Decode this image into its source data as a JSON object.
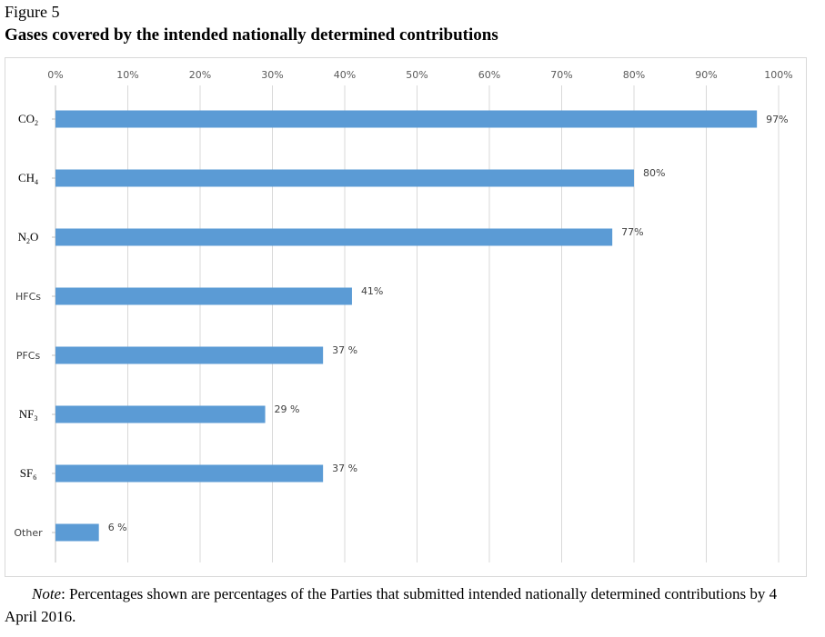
{
  "figure_label": "Figure 5",
  "figure_title": "Gases covered by the intended nationally determined contributions",
  "note": {
    "lead": "Note",
    "text": ": Percentages shown are percentages of the Parties that submitted intended nationally determined contributions by 4 April 2016."
  },
  "chart_data": {
    "type": "bar",
    "orientation": "horizontal",
    "categories": [
      {
        "base": "CO",
        "sub": "2"
      },
      {
        "base": "CH",
        "sub": "4"
      },
      {
        "base": "N",
        "sub": "2",
        "tail": "O"
      },
      {
        "base": "HFCs"
      },
      {
        "base": "PFCs"
      },
      {
        "base": "NF",
        "sub": "3"
      },
      {
        "base": "SF",
        "sub": "6"
      },
      {
        "base": "Other"
      }
    ],
    "values": [
      97,
      80,
      77,
      41,
      37,
      29,
      37,
      6
    ],
    "value_labels": [
      "97%",
      "80%",
      "77%",
      "41%",
      "37 %",
      "29 %",
      "37 %",
      "6 %"
    ],
    "xlim": [
      0,
      100
    ],
    "x_ticks": [
      "0%",
      "10%",
      "20%",
      "30%",
      "40%",
      "50%",
      "60%",
      "70%",
      "80%",
      "90%",
      "100%"
    ],
    "x_axis_position": "top",
    "grid": true,
    "bar_color": "#5b9bd5",
    "grid_color": "#d9d9d9"
  }
}
